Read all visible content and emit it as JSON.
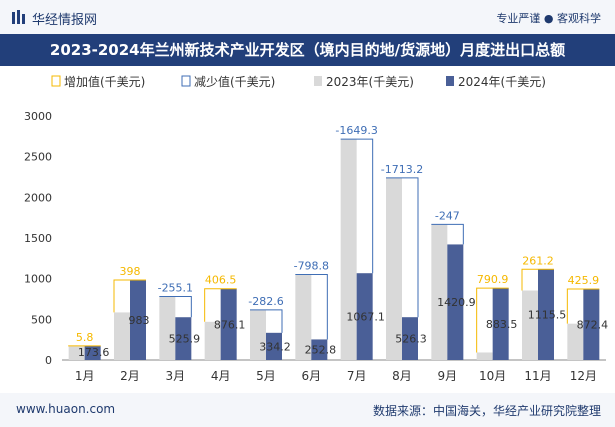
{
  "header": {
    "logo_text": "华经情报网",
    "slogan": "专业严谨 ● 客观科学"
  },
  "footer": {
    "site": "www.huaon.com",
    "source": "数据来源：中国海关，华经产业研究院整理"
  },
  "colors": {
    "increase": "#f5b800",
    "decrease": "#3f6eb5",
    "bar2023": "#d9d9d9",
    "bar2024": "#4a5f97",
    "title_bg": "#223f7a"
  },
  "chart_data": {
    "type": "bar",
    "title": "2023-2024年兰州新技术产业开发区（境内目的地/货源地）月度进出口总额",
    "categories": [
      "1月",
      "2月",
      "3月",
      "4月",
      "5月",
      "6月",
      "7月",
      "8月",
      "9月",
      "10月",
      "11月",
      "12月"
    ],
    "series": [
      {
        "name": "2023年(千美元)",
        "values": [
          167.8,
          585,
          781,
          469.6,
          616.8,
          1051.6,
          2716.4,
          2239.5,
          1667.9,
          92.6,
          854.3,
          446.5
        ]
      },
      {
        "name": "2024年(千美元)",
        "values": [
          173.6,
          983,
          525.9,
          876.1,
          334.2,
          252.8,
          1067.1,
          526.3,
          1420.9,
          883.5,
          1115.5,
          872.4
        ]
      }
    ],
    "changes": [
      "5.8",
      "398",
      "-255.1",
      "406.5",
      "-282.6",
      "-798.8",
      "-1649.3",
      "-1713.2",
      "-247",
      "790.9",
      "261.2",
      "425.9"
    ],
    "legend": [
      "增加值(千美元)",
      "减少值(千美元)",
      "2023年(千美元)",
      "2024年(千美元)"
    ],
    "legend_position": "top",
    "yticks": [
      0,
      500,
      1000,
      1500,
      2000,
      2500,
      3000
    ],
    "ylim": [
      0,
      3000
    ],
    "grid": false
  }
}
